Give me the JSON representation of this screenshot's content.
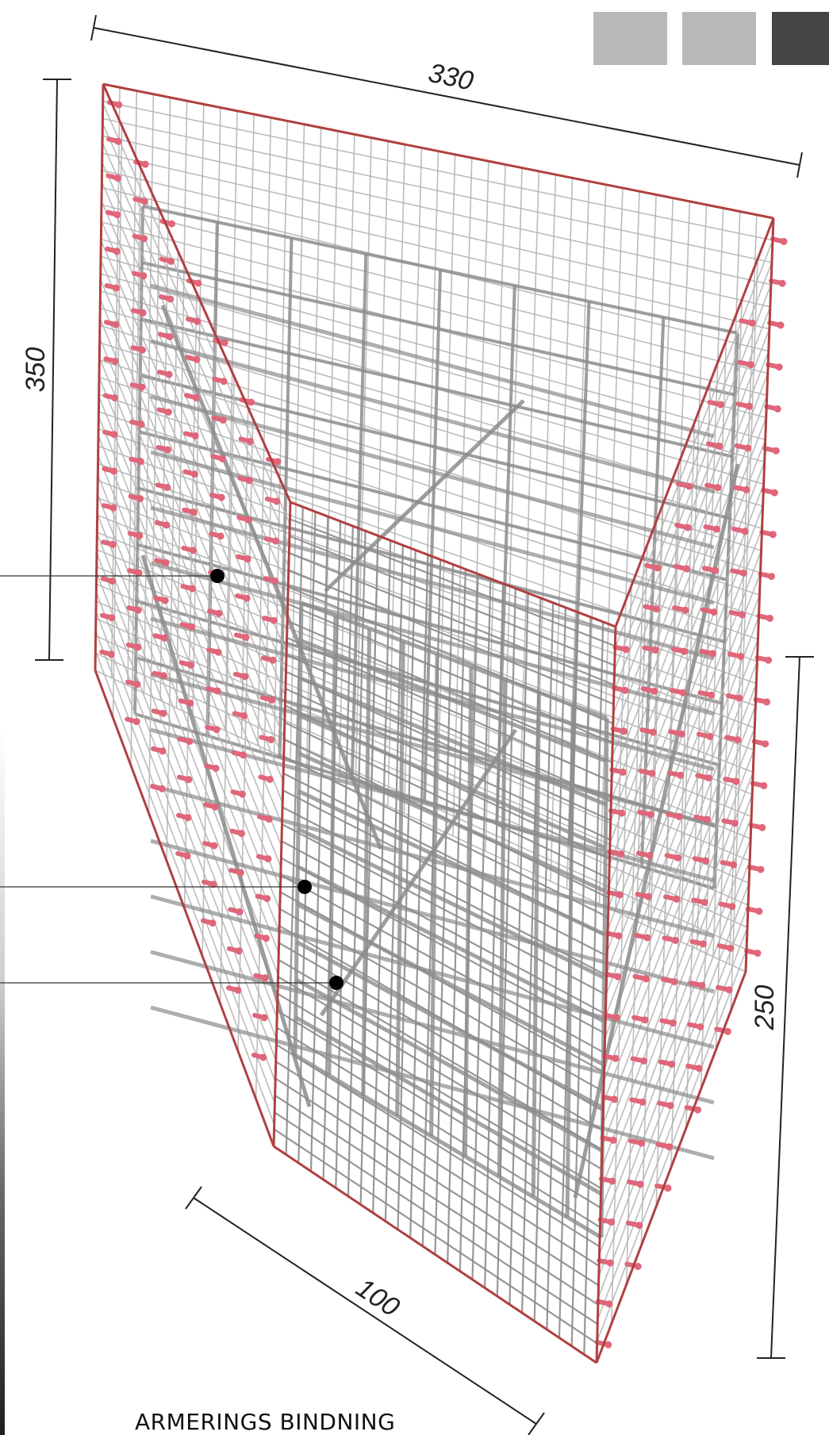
{
  "dimensions": {
    "top": "330",
    "left": "350",
    "bottom": "100",
    "right": "250"
  },
  "caption": "ARMERINGS BINDNING",
  "swatches": [
    {
      "name": "light-gray",
      "color": "#b8b8b8"
    },
    {
      "name": "light-gray-2",
      "color": "#b8b8b8"
    },
    {
      "name": "dark-gray",
      "color": "#454545"
    }
  ],
  "colors": {
    "outline": "#b04040",
    "rebar": "#8c8c8c",
    "rebar_light": "#b5b5b5",
    "anchor": "#e0667a",
    "dimension": "#222222",
    "marker": "#000000"
  },
  "callout_markers": 3
}
